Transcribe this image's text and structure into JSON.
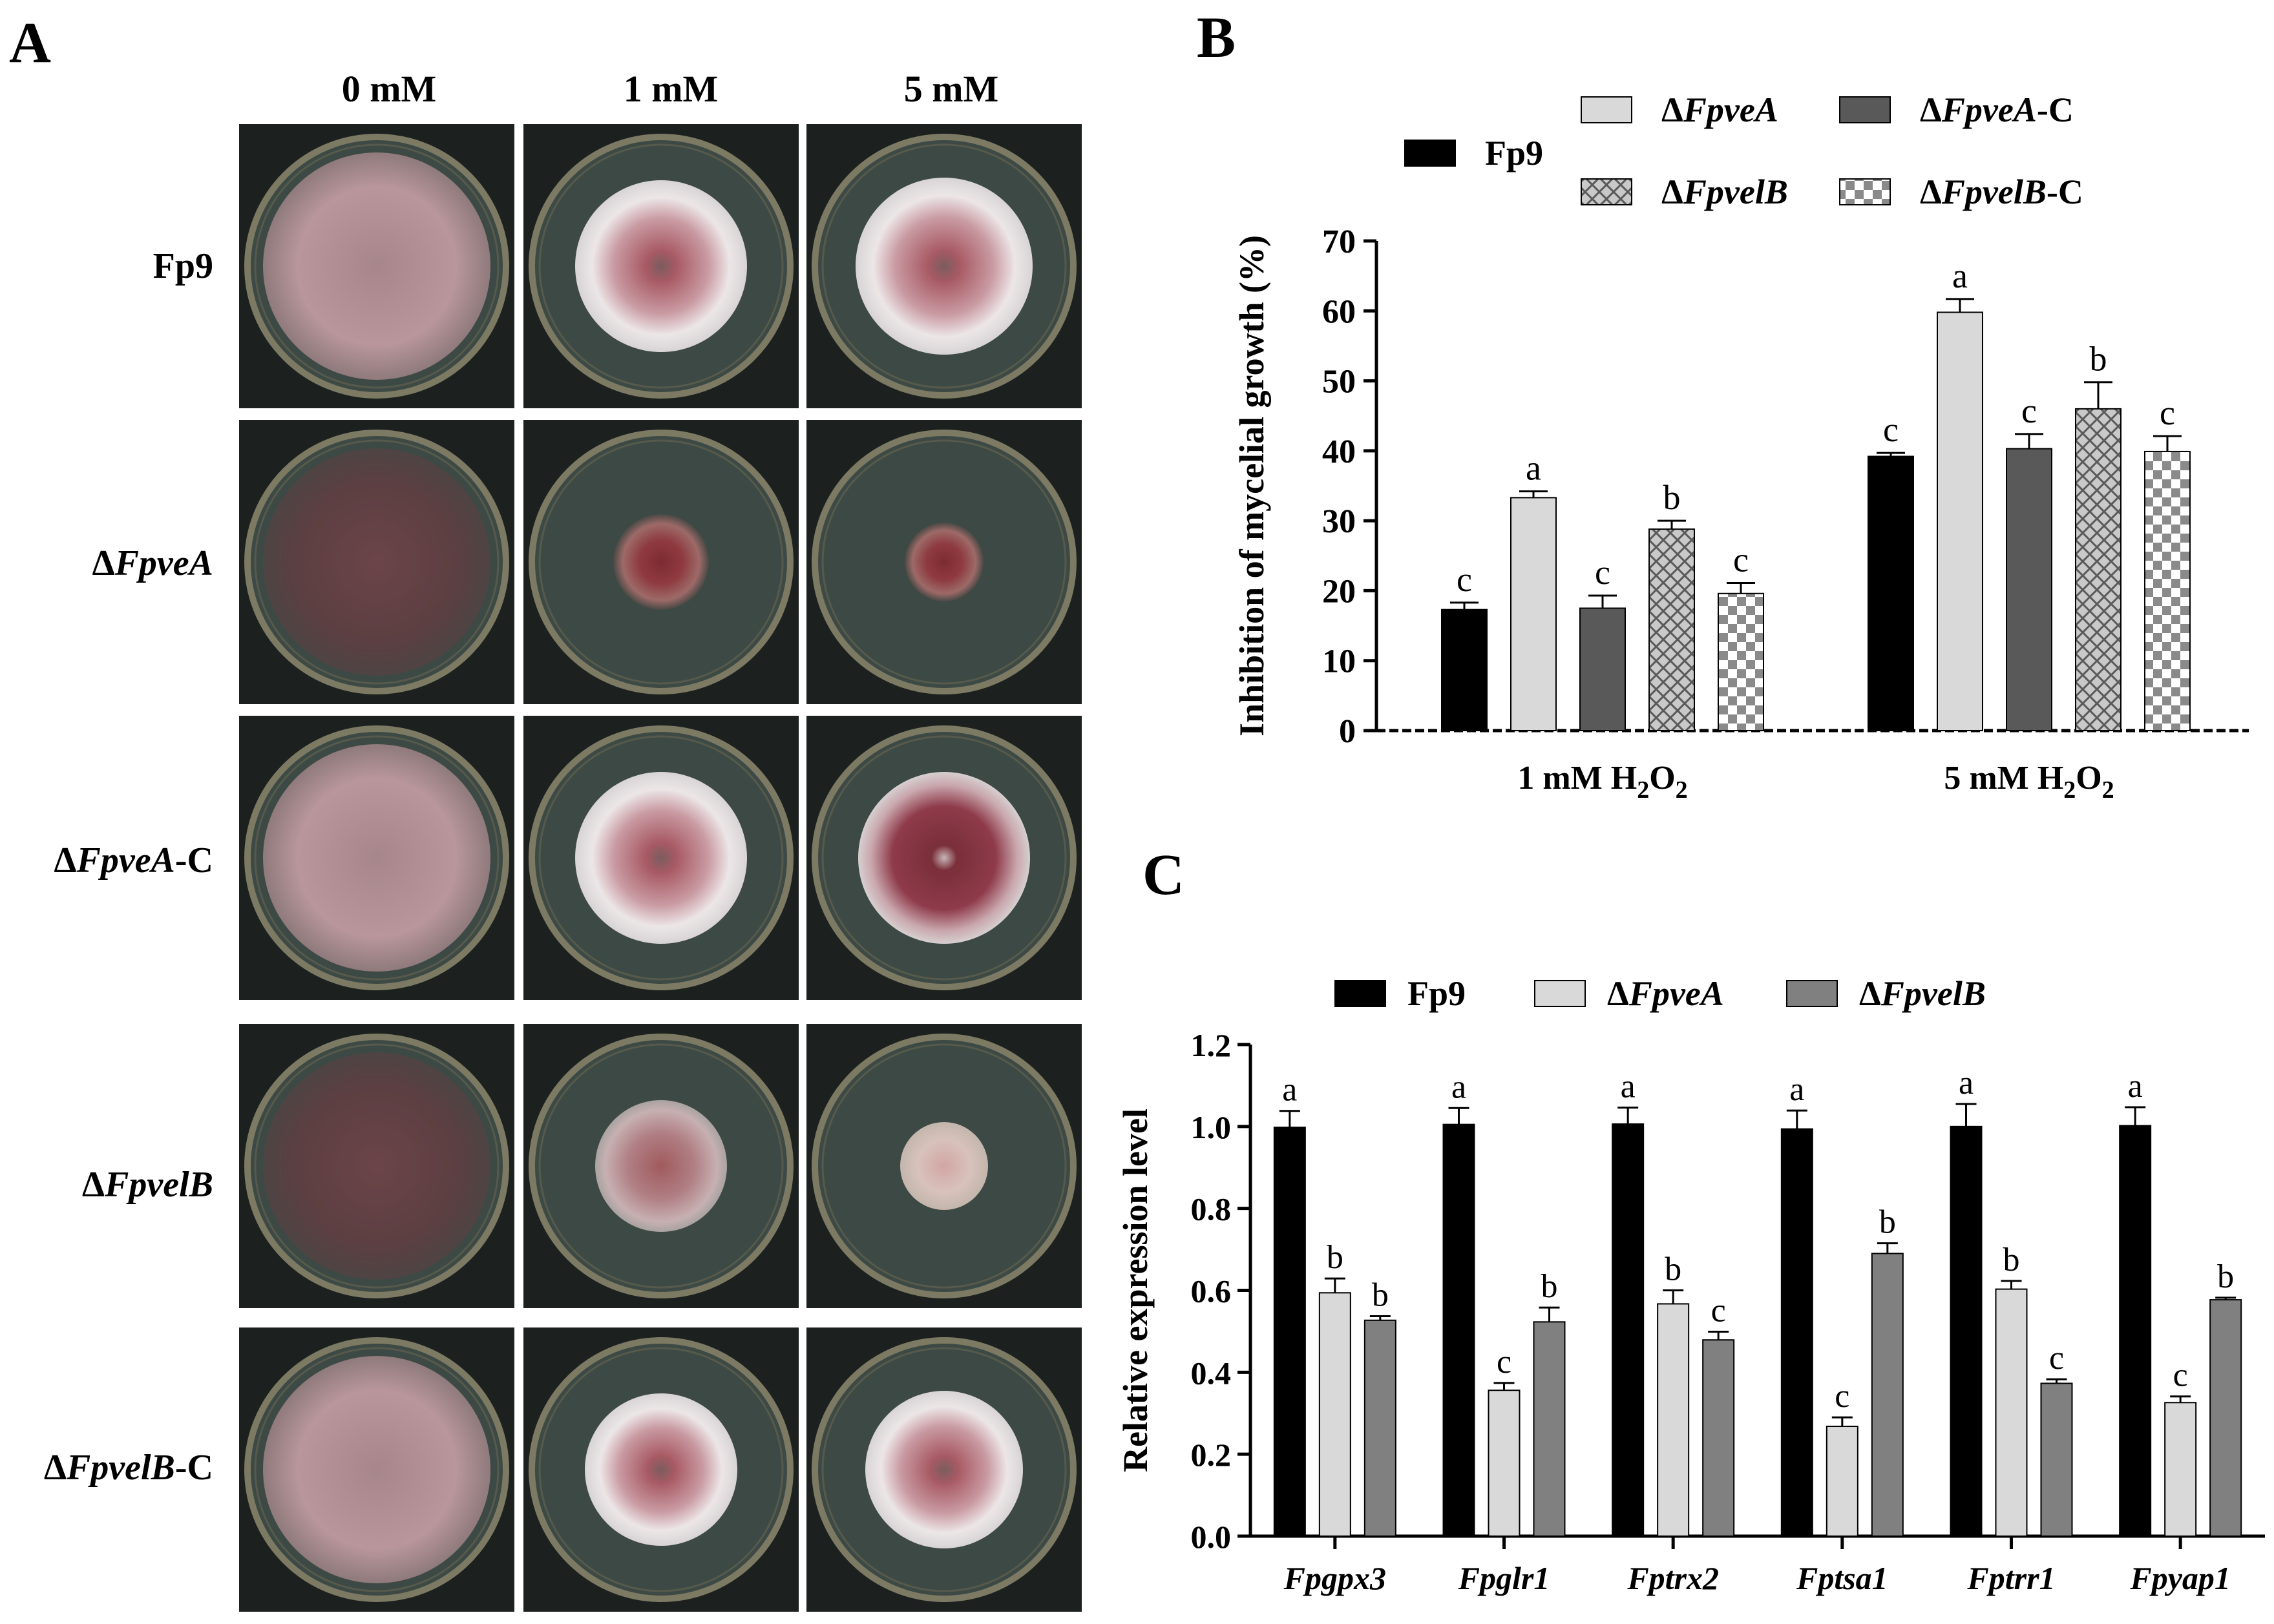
{
  "panels": {
    "a": "A",
    "b": "B",
    "c": "C"
  },
  "panel_a": {
    "columns": [
      "0 mM",
      "1 mM",
      "5 mM"
    ],
    "rows": [
      {
        "prefix": "",
        "name": "Fp9",
        "suffix": ""
      },
      {
        "prefix": "Δ",
        "name": "FpveA",
        "suffix": ""
      },
      {
        "prefix": "Δ",
        "name": "FpveA",
        "suffix": "-C"
      },
      {
        "prefix": "Δ",
        "name": "FpvelB",
        "suffix": ""
      },
      {
        "prefix": "Δ",
        "name": "FpvelB",
        "suffix": "-C"
      }
    ],
    "plate_colors": {
      "background": "#1c211f",
      "rim": "#7d7a64",
      "agar": "#3d4944",
      "white_mycelium": "#e8e2e3",
      "pink": "#b48a91",
      "dark_red": "#8a3a3f"
    }
  },
  "chart_data": [
    {
      "type": "bar",
      "title": "",
      "ylabel": "Inhibition of mycelial growth (%)",
      "xlabel": "",
      "ylim": [
        0,
        70
      ],
      "yticks": [
        0,
        10,
        20,
        30,
        40,
        50,
        60,
        70
      ],
      "categories": [
        "1 mM H2O2",
        "5 mM H2O2"
      ],
      "category_labels": [
        {
          "pre": "1 mM H",
          "sub1": "2",
          "mid": "O",
          "sub2": "2"
        },
        {
          "pre": "5 mM H",
          "sub1": "2",
          "mid": "O",
          "sub2": "2"
        }
      ],
      "legend_position": "top",
      "series": [
        {
          "name": "Fp9",
          "label_pre": "",
          "label_italic": "Fp9",
          "label_suf": "",
          "italic": false,
          "fill": "#000000",
          "pattern": "solid",
          "values": [
            17.3,
            39.2
          ],
          "errors": [
            1.0,
            0.5
          ],
          "letters": [
            "c",
            "c"
          ]
        },
        {
          "name": "ΔFpveA",
          "label_pre": "Δ",
          "label_italic": "FpveA",
          "label_suf": "",
          "italic": true,
          "fill": "#d9d9d9",
          "pattern": "solid",
          "values": [
            33.3,
            59.8
          ],
          "errors": [
            0.9,
            1.9
          ],
          "letters": [
            "a",
            "a"
          ]
        },
        {
          "name": "ΔFpveA-C",
          "label_pre": "Δ",
          "label_italic": "FpveA",
          "label_suf": "-C",
          "italic": true,
          "fill": "#595959",
          "pattern": "solid",
          "values": [
            17.5,
            40.3
          ],
          "errors": [
            1.8,
            2.1
          ],
          "letters": [
            "c",
            "c"
          ]
        },
        {
          "name": "ΔFpvelB",
          "label_pre": "Δ",
          "label_italic": "FpvelB",
          "label_suf": "",
          "italic": true,
          "fill": "#c9c9c9",
          "pattern": "crosshatch",
          "values": [
            28.8,
            46.0
          ],
          "errors": [
            1.2,
            3.8
          ],
          "letters": [
            "b",
            "b"
          ]
        },
        {
          "name": "ΔFpvelB-C",
          "label_pre": "Δ",
          "label_italic": "FpvelB",
          "label_suf": "-C",
          "italic": true,
          "fill": "#ffffff",
          "pattern": "checker",
          "values": [
            19.6,
            39.9
          ],
          "errors": [
            1.5,
            2.2
          ],
          "letters": [
            "c",
            "c"
          ]
        }
      ]
    },
    {
      "type": "bar",
      "title": "",
      "ylabel": "Relative expression level",
      "xlabel": "",
      "ylim": [
        0,
        1.2
      ],
      "yticks": [
        "0.0",
        "0.2",
        "0.4",
        "0.6",
        "0.8",
        "1.0",
        "1.2"
      ],
      "categories": [
        "Fpgpx3",
        "Fpglr1",
        "Fptrx2",
        "Fptsa1",
        "Fptrr1",
        "Fpyap1"
      ],
      "legend_position": "top",
      "series": [
        {
          "name": "Fp9",
          "label_pre": "",
          "label_italic": "Fp9",
          "label_suf": "",
          "italic": false,
          "fill": "#000000",
          "values": [
            0.998,
            1.005,
            1.006,
            0.994,
            1.0,
            1.002
          ],
          "errors": [
            0.04,
            0.04,
            0.04,
            0.045,
            0.055,
            0.045
          ],
          "letters": [
            "a",
            "a",
            "a",
            "a",
            "a",
            "a"
          ]
        },
        {
          "name": "ΔFpveA",
          "label_pre": "Δ",
          "label_italic": "FpveA",
          "label_suf": "",
          "italic": true,
          "fill": "#d9d9d9",
          "values": [
            0.594,
            0.356,
            0.567,
            0.268,
            0.603,
            0.326
          ],
          "errors": [
            0.035,
            0.018,
            0.033,
            0.022,
            0.02,
            0.015
          ],
          "letters": [
            "b",
            "c",
            "b",
            "c",
            "b",
            "c"
          ]
        },
        {
          "name": "ΔFpvelB",
          "label_pre": "Δ",
          "label_italic": "FpvelB",
          "label_suf": "",
          "italic": true,
          "fill": "#808080",
          "values": [
            0.527,
            0.523,
            0.479,
            0.69,
            0.373,
            0.577
          ],
          "errors": [
            0.01,
            0.035,
            0.02,
            0.025,
            0.01,
            0.005
          ],
          "letters": [
            "b",
            "b",
            "c",
            "b",
            "c",
            "b"
          ]
        }
      ]
    }
  ]
}
